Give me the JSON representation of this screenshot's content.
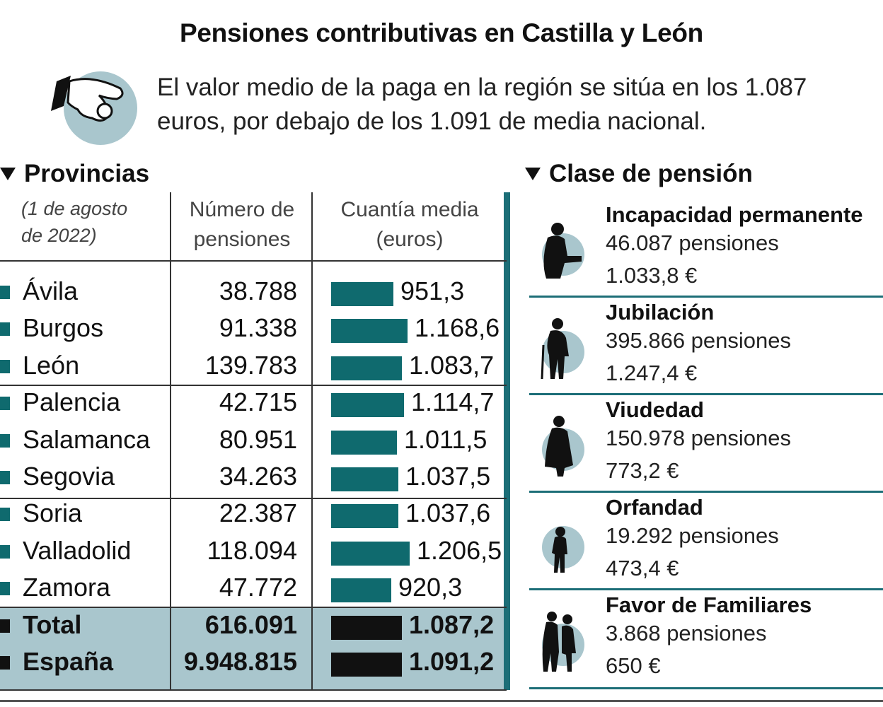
{
  "title": "Pensiones contributivas en Castilla y León",
  "intro_line1": "El valor medio de la paga en la región se sitúa en los 1.087",
  "intro_line2": "euros, por debajo de los 1.091 de media nacional.",
  "provincias": {
    "heading": "Provincias",
    "date_line1": "(1 de agosto",
    "date_line2": "de 2022)",
    "col_num_line1": "Número de",
    "col_num_line2": "pensiones",
    "col_amt_line1": "Cuantía media",
    "col_amt_line2": "(euros)"
  },
  "chart_data": {
    "type": "bar",
    "title": "Pensiones contributivas en Castilla y León",
    "xlabel": "",
    "ylabel": "Cuantía media (euros)",
    "categories": [
      "Ávila",
      "Burgos",
      "León",
      "Palencia",
      "Salamanca",
      "Segovia",
      "Soria",
      "Valladolid",
      "Zamora",
      "Total",
      "España"
    ],
    "pensiones": [
      "38.788",
      "91.338",
      "139.783",
      "42.715",
      "80.951",
      "34.263",
      "22.387",
      "118.094",
      "47.772",
      "616.091",
      "9.948.815"
    ],
    "cuantia_labels": [
      "951,3",
      "1.168,6",
      "1.083,7",
      "1.114,7",
      "1.011,5",
      "1.037,5",
      "1.037,6",
      "1.206,5",
      "920,3",
      "1.087,2",
      "1.091,2"
    ],
    "values": [
      951.3,
      1168.6,
      1083.7,
      1114.7,
      1011.5,
      1037.5,
      1037.6,
      1206.5,
      920.3,
      1087.2,
      1091.2
    ],
    "xlim": [
      0,
      1300
    ],
    "colors": {
      "province": "#0f6a6e",
      "total": "#111111"
    }
  },
  "clase": {
    "heading": "Clase de pensión",
    "items": [
      {
        "name": "Incapacidad permanente",
        "pensiones": "46.087 pensiones",
        "cuantia": "1.033,8 €",
        "icon": "seated-person-icon"
      },
      {
        "name": "Jubilación",
        "pensiones": "395.866 pensiones",
        "cuantia": "1.247,4 €",
        "icon": "elderly-person-icon"
      },
      {
        "name": "Viudedad",
        "pensiones": "150.978 pensiones",
        "cuantia": "773,2 €",
        "icon": "widow-icon"
      },
      {
        "name": "Orfandad",
        "pensiones": "19.292 pensiones",
        "cuantia": "473,4 €",
        "icon": "child-icon"
      },
      {
        "name": "Favor de Familiares",
        "pensiones": "3.868 pensiones",
        "cuantia": "650 €",
        "icon": "family-icon"
      }
    ]
  }
}
